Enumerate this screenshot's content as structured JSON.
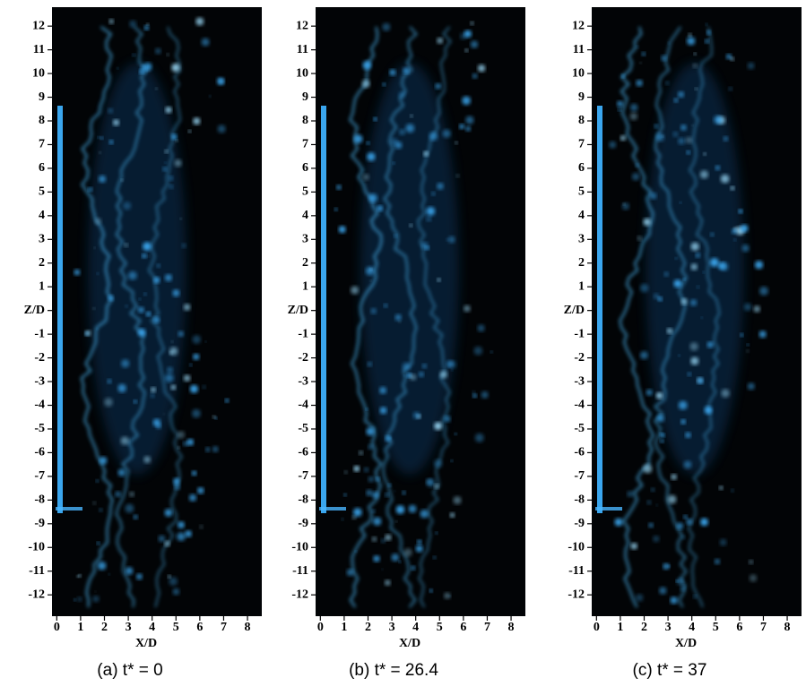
{
  "chart_data": [
    {
      "type": "image",
      "title": "(a) t* = 0",
      "xlabel": "X/D",
      "xlim": [
        -0.2,
        8.6
      ],
      "ylim": [
        -12.9,
        12.8
      ],
      "xticks": [
        0,
        1,
        2,
        3,
        4,
        5,
        6,
        7,
        8
      ],
      "yticks": [
        -12,
        -11,
        -10,
        -9,
        -8,
        -7,
        -6,
        -5,
        -4,
        -3,
        -2,
        -1,
        {
          "value": 0,
          "label": "Z/D"
        },
        1,
        2,
        3,
        4,
        5,
        6,
        7,
        8,
        9,
        10,
        11,
        12
      ]
    },
    {
      "type": "image",
      "title": "(b) t* = 26.4",
      "xlabel": "X/D",
      "xlim": [
        -0.2,
        8.6
      ],
      "ylim": [
        -12.9,
        12.8
      ],
      "xticks": [
        0,
        1,
        2,
        3,
        4,
        5,
        6,
        7,
        8
      ],
      "yticks": [
        -12,
        -11,
        -10,
        -9,
        -8,
        -7,
        -6,
        -5,
        -4,
        -3,
        -2,
        -1,
        {
          "value": 0,
          "label": "Z/D"
        },
        1,
        2,
        3,
        4,
        5,
        6,
        7,
        8,
        9,
        10,
        11,
        12
      ]
    },
    {
      "type": "image",
      "title": "(c) t* = 37",
      "xlabel": "X/D",
      "xlim": [
        -0.2,
        8.6
      ],
      "ylim": [
        -12.9,
        12.8
      ],
      "xticks": [
        0,
        1,
        2,
        3,
        4,
        5,
        6,
        7,
        8
      ],
      "yticks": [
        -12,
        -11,
        -10,
        -9,
        -8,
        -7,
        -6,
        -5,
        -4,
        -3,
        -2,
        -1,
        {
          "value": 0,
          "label": "Z/D"
        },
        1,
        2,
        3,
        4,
        5,
        6,
        7,
        8,
        9,
        10,
        11,
        12
      ]
    }
  ]
}
